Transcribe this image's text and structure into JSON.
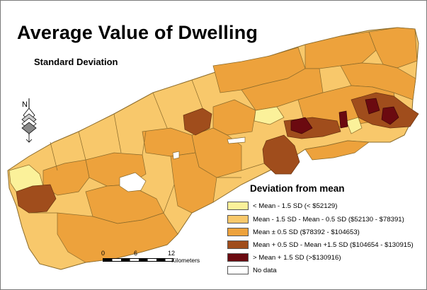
{
  "map": {
    "title": "Average Value of Dwelling",
    "subtitle": "Standard Deviation",
    "north_label": "N"
  },
  "legend": {
    "title": "Deviation from mean",
    "items": [
      {
        "label": "< Mean - 1.5 SD (< $52129)",
        "color": "#fbf19a"
      },
      {
        "label": "Mean - 1.5 SD - Mean - 0.5 SD ($52130 - $78391)",
        "color": "#f8c86b"
      },
      {
        "label": "Mean ± 0.5 SD ($78392 - $104653)",
        "color": "#eda23c"
      },
      {
        "label": "Mean + 0.5 SD - Mean +1.5 SD ($104654 - $130915)",
        "color": "#a04d1c"
      },
      {
        "label": "> Mean + 1.5 SD (>$130916)",
        "color": "#6b0a10"
      },
      {
        "label": "No data",
        "color": "#ffffff"
      }
    ]
  },
  "scale": {
    "ticks": [
      "0",
      "6",
      "12"
    ],
    "unit": "Kilometers"
  },
  "colors": {
    "lowest": "#fbf19a",
    "low": "#f8c86b",
    "mid": "#eda23c",
    "high": "#a04d1c",
    "highest": "#6b0a10",
    "no_data": "#ffffff",
    "boundary": "#8a6a2a"
  }
}
